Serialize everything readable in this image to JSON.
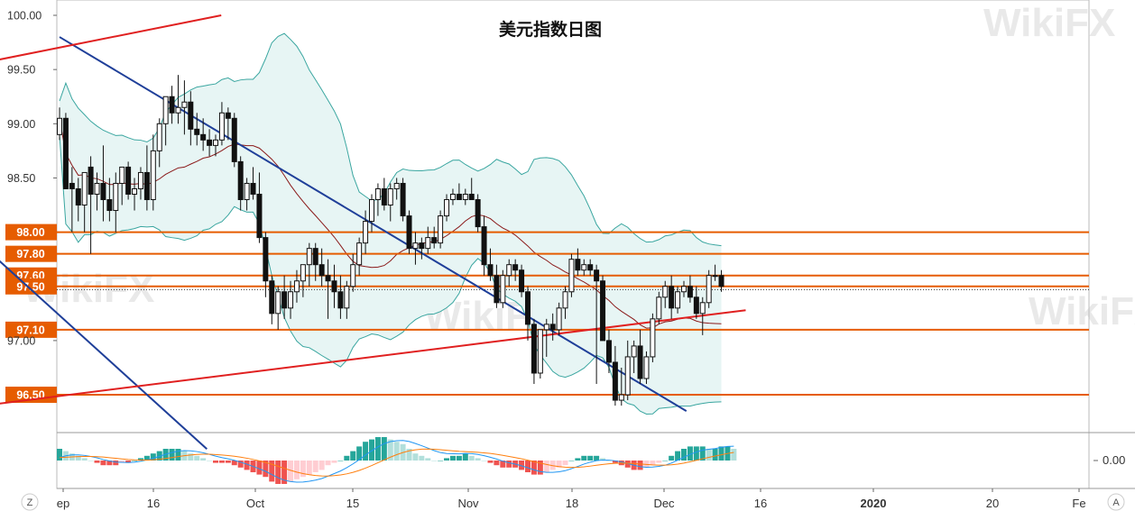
{
  "chart_data": {
    "type": "candlestick",
    "title": "美元指数日图",
    "y_axis": {
      "ylim": [
        96.2,
        100.1
      ],
      "tick_labels": [
        "100.00",
        "99.50",
        "99.00",
        "98.50",
        "97.00"
      ],
      "tick_values": [
        100.0,
        99.5,
        99.0,
        98.5,
        97.0
      ]
    },
    "x_axis": {
      "tick_labels": [
        "ep",
        "16",
        "Oct",
        "15",
        "Nov",
        "18",
        "Dec",
        "16",
        "2020",
        "20",
        "Fe"
      ],
      "bold_label": "2020"
    },
    "horizontal_levels": [
      {
        "value": 98.0,
        "label": "98.00"
      },
      {
        "value": 97.8,
        "label": "97.80"
      },
      {
        "value": 97.6,
        "label": "97.60"
      },
      {
        "value": 97.5,
        "label": "97.50"
      },
      {
        "value": 97.1,
        "label": "97.10"
      },
      {
        "value": 96.5,
        "label": "96.50"
      }
    ],
    "level_color": "#e65c00",
    "current_price_line": 97.47,
    "trendlines": [
      {
        "color": "#1f3f99",
        "from": [
          0,
          99.8
        ],
        "to": [
          100.4,
          96.35
        ]
      },
      {
        "color": "#1f3f99",
        "from": [
          -12.8,
          97.9
        ],
        "to": [
          23.6,
          96.0
        ]
      },
      {
        "color": "#e02020",
        "from": [
          -22,
          99.45
        ],
        "to": [
          25.9,
          100.0
        ]
      },
      {
        "color": "#e02020",
        "from": [
          -22,
          96.33
        ],
        "to": [
          109.9,
          97.28
        ]
      }
    ],
    "candles": [
      [
        98.9,
        99.15,
        98.85,
        99.05
      ],
      [
        99.05,
        99.1,
        98.4,
        98.4
      ],
      [
        98.45,
        98.6,
        98.0,
        98.4
      ],
      [
        98.4,
        98.5,
        98.1,
        98.25
      ],
      [
        98.25,
        98.55,
        98.0,
        98.55
      ],
      [
        98.6,
        98.7,
        97.8,
        98.35
      ],
      [
        98.35,
        98.55,
        98.2,
        98.45
      ],
      [
        98.45,
        98.8,
        98.1,
        98.3
      ],
      [
        98.3,
        98.5,
        98.1,
        98.2
      ],
      [
        98.2,
        98.55,
        98.0,
        98.45
      ],
      [
        98.45,
        98.6,
        98.25,
        98.6
      ],
      [
        98.6,
        98.65,
        98.3,
        98.35
      ],
      [
        98.35,
        98.5,
        98.2,
        98.4
      ],
      [
        98.4,
        98.6,
        98.3,
        98.55
      ],
      [
        98.55,
        98.8,
        98.2,
        98.3
      ],
      [
        98.3,
        98.9,
        98.2,
        98.75
      ],
      [
        98.75,
        99.05,
        98.6,
        99.0
      ],
      [
        99.0,
        99.25,
        98.8,
        99.25
      ],
      [
        99.25,
        99.35,
        99.0,
        99.1
      ],
      [
        99.1,
        99.45,
        99.0,
        99.15
      ],
      [
        99.15,
        99.4,
        98.9,
        99.2
      ],
      [
        99.2,
        99.3,
        98.8,
        98.95
      ],
      [
        98.95,
        99.1,
        98.8,
        98.9
      ],
      [
        98.9,
        99.05,
        98.75,
        98.85
      ],
      [
        98.85,
        98.95,
        98.7,
        98.8
      ],
      [
        98.8,
        98.9,
        98.7,
        98.85
      ],
      [
        98.85,
        99.2,
        98.8,
        99.1
      ],
      [
        99.1,
        99.15,
        98.85,
        99.05
      ],
      [
        99.05,
        99.1,
        98.6,
        98.65
      ],
      [
        98.65,
        98.7,
        98.2,
        98.3
      ],
      [
        98.3,
        98.5,
        98.2,
        98.45
      ],
      [
        98.45,
        98.6,
        98.3,
        98.35
      ],
      [
        98.35,
        98.55,
        97.9,
        97.95
      ],
      [
        97.95,
        98.0,
        97.4,
        97.55
      ],
      [
        97.55,
        97.6,
        97.15,
        97.25
      ],
      [
        97.25,
        97.5,
        97.1,
        97.45
      ],
      [
        97.45,
        97.6,
        97.2,
        97.3
      ],
      [
        97.3,
        97.55,
        97.2,
        97.45
      ],
      [
        97.45,
        97.65,
        97.35,
        97.55
      ],
      [
        97.55,
        97.7,
        97.4,
        97.7
      ],
      [
        97.7,
        97.9,
        97.5,
        97.85
      ],
      [
        97.85,
        97.9,
        97.55,
        97.7
      ],
      [
        97.7,
        97.85,
        97.5,
        97.6
      ],
      [
        97.6,
        97.75,
        97.2,
        97.55
      ],
      [
        97.55,
        97.7,
        97.3,
        97.45
      ],
      [
        97.45,
        97.6,
        97.2,
        97.3
      ],
      [
        97.3,
        97.55,
        97.2,
        97.5
      ],
      [
        97.5,
        97.8,
        97.45,
        97.7
      ],
      [
        97.7,
        97.95,
        97.6,
        97.9
      ],
      [
        97.9,
        98.2,
        97.8,
        98.1
      ],
      [
        98.1,
        98.35,
        98.0,
        98.3
      ],
      [
        98.3,
        98.45,
        98.15,
        98.4
      ],
      [
        98.4,
        98.5,
        98.2,
        98.25
      ],
      [
        98.25,
        98.45,
        98.1,
        98.4
      ],
      [
        98.4,
        98.5,
        98.3,
        98.45
      ],
      [
        98.45,
        98.5,
        98.1,
        98.15
      ],
      [
        98.15,
        98.2,
        97.8,
        97.85
      ],
      [
        97.85,
        98.0,
        97.7,
        97.9
      ],
      [
        97.9,
        97.95,
        97.75,
        97.85
      ],
      [
        97.85,
        98.05,
        97.8,
        97.95
      ],
      [
        97.95,
        98.05,
        97.85,
        97.9
      ],
      [
        97.9,
        98.2,
        97.85,
        98.15
      ],
      [
        98.15,
        98.35,
        98.1,
        98.3
      ],
      [
        98.3,
        98.4,
        98.25,
        98.35
      ],
      [
        98.35,
        98.45,
        98.3,
        98.3
      ],
      [
        98.3,
        98.4,
        98.25,
        98.35
      ],
      [
        98.35,
        98.5,
        98.3,
        98.3
      ],
      [
        98.3,
        98.35,
        98.0,
        98.05
      ],
      [
        98.05,
        98.15,
        97.6,
        97.7
      ],
      [
        97.7,
        97.85,
        97.55,
        97.6
      ],
      [
        97.6,
        97.7,
        97.3,
        97.35
      ],
      [
        97.35,
        97.65,
        97.3,
        97.6
      ],
      [
        97.6,
        97.75,
        97.5,
        97.7
      ],
      [
        97.7,
        97.75,
        97.55,
        97.65
      ],
      [
        97.65,
        97.7,
        97.4,
        97.45
      ],
      [
        97.45,
        97.5,
        97.0,
        97.15
      ],
      [
        97.15,
        97.2,
        96.6,
        96.7
      ],
      [
        96.7,
        97.1,
        96.65,
        97.1
      ],
      [
        97.1,
        97.2,
        96.85,
        97.15
      ],
      [
        97.15,
        97.25,
        97.0,
        97.1
      ],
      [
        97.1,
        97.35,
        97.05,
        97.3
      ],
      [
        97.3,
        97.5,
        97.2,
        97.45
      ],
      [
        97.45,
        97.8,
        97.4,
        97.75
      ],
      [
        97.75,
        97.85,
        97.6,
        97.65
      ],
      [
        97.65,
        97.75,
        97.6,
        97.7
      ],
      [
        97.7,
        97.75,
        97.6,
        97.65
      ],
      [
        97.65,
        97.7,
        96.6,
        97.55
      ],
      [
        97.55,
        97.6,
        97.0,
        97.0
      ],
      [
        97.0,
        97.1,
        96.7,
        96.8
      ],
      [
        96.8,
        96.95,
        96.4,
        96.45
      ],
      [
        96.45,
        96.75,
        96.4,
        96.5
      ],
      [
        96.5,
        97.0,
        96.45,
        96.85
      ],
      [
        96.85,
        97.0,
        96.7,
        96.95
      ],
      [
        96.95,
        97.1,
        96.6,
        96.65
      ],
      [
        96.65,
        96.9,
        96.6,
        96.85
      ],
      [
        96.85,
        97.25,
        96.8,
        97.2
      ],
      [
        97.2,
        97.45,
        97.15,
        97.4
      ],
      [
        97.4,
        97.55,
        97.3,
        97.5
      ],
      [
        97.5,
        97.6,
        97.2,
        97.3
      ],
      [
        97.3,
        97.5,
        97.25,
        97.45
      ],
      [
        97.45,
        97.55,
        97.4,
        97.5
      ],
      [
        97.5,
        97.6,
        97.35,
        97.4
      ],
      [
        97.4,
        97.5,
        97.2,
        97.25
      ],
      [
        97.25,
        97.4,
        97.05,
        97.35
      ],
      [
        97.35,
        97.65,
        97.3,
        97.6
      ],
      [
        97.6,
        97.7,
        97.55,
        97.6
      ],
      [
        97.6,
        97.65,
        97.45,
        97.5
      ]
    ],
    "candle_up_color": "#ffffff",
    "candle_down_color": "#111111",
    "bollinger_color": "#3aa6a0",
    "bollinger_fill": "#e7f5f4",
    "ma_color": "#8b1a1a",
    "macd": {
      "zero_label": "0.00",
      "bar_colors": {
        "pos_strong": "#26a69a",
        "pos_weak": "#b2dfdb",
        "neg_strong": "#ef5350",
        "neg_weak": "#ffcdd2"
      },
      "line_colors": {
        "macd": "#2196f3",
        "signal": "#ff7f0e"
      },
      "histogram": [
        0.05,
        0.04,
        0.03,
        0.02,
        0.01,
        0.0,
        -0.01,
        -0.02,
        -0.02,
        -0.02,
        -0.01,
        -0.01,
        0.0,
        0.01,
        0.02,
        0.03,
        0.04,
        0.05,
        0.05,
        0.05,
        0.04,
        0.03,
        0.02,
        0.01,
        0.0,
        -0.01,
        -0.01,
        -0.01,
        -0.02,
        -0.03,
        -0.04,
        -0.05,
        -0.06,
        -0.07,
        -0.09,
        -0.1,
        -0.1,
        -0.09,
        -0.08,
        -0.07,
        -0.06,
        -0.05,
        -0.04,
        -0.02,
        -0.01,
        0.0,
        0.02,
        0.04,
        0.06,
        0.08,
        0.09,
        0.1,
        0.1,
        0.09,
        0.08,
        0.07,
        0.05,
        0.03,
        0.02,
        0.01,
        0.0,
        0.0,
        0.01,
        0.02,
        0.02,
        0.03,
        0.02,
        0.01,
        0.0,
        -0.01,
        -0.02,
        -0.03,
        -0.03,
        -0.03,
        -0.04,
        -0.05,
        -0.06,
        -0.06,
        -0.05,
        -0.04,
        -0.03,
        -0.02,
        0.0,
        0.01,
        0.02,
        0.02,
        0.02,
        0.01,
        0.0,
        -0.01,
        -0.02,
        -0.03,
        -0.04,
        -0.04,
        -0.03,
        -0.02,
        -0.01,
        0.0,
        0.02,
        0.04,
        0.05,
        0.06,
        0.06,
        0.06,
        0.05,
        0.05,
        0.06,
        0.06,
        0.05
      ]
    }
  },
  "watermark": "WikiFX",
  "toolbar": {
    "left_icon": "Z",
    "right_icon": "A"
  }
}
